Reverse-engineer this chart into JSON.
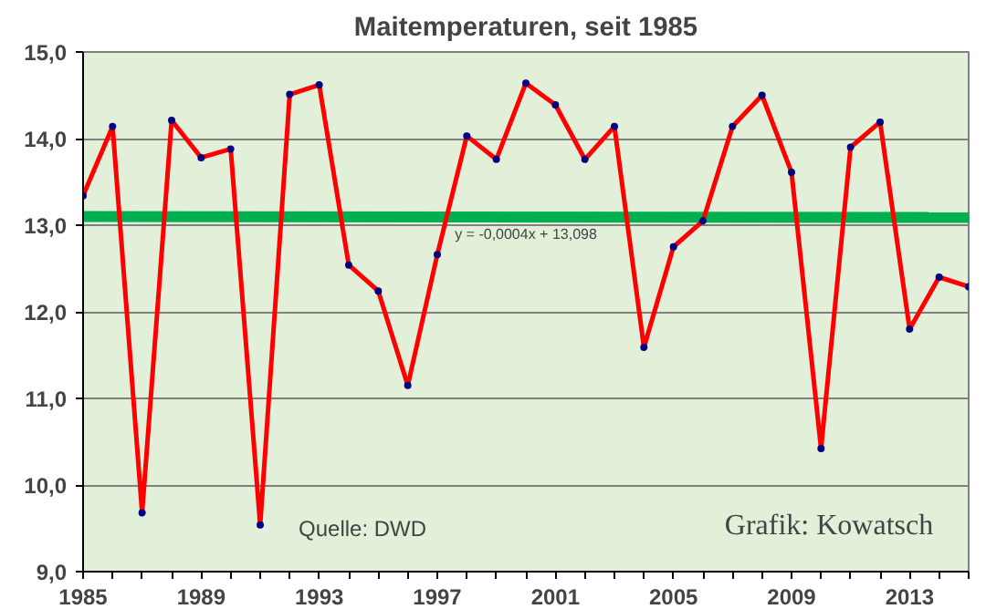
{
  "chart_data": {
    "type": "line",
    "title": "Maitemperaturen, seit 1985",
    "x": [
      1985,
      1986,
      1987,
      1988,
      1989,
      1990,
      1991,
      1992,
      1993,
      1994,
      1995,
      1996,
      1997,
      1998,
      1999,
      2000,
      2001,
      2002,
      2003,
      2004,
      2005,
      2006,
      2007,
      2008,
      2009,
      2010,
      2011,
      2012,
      2013,
      2014,
      2015
    ],
    "series": [
      {
        "color": "#ff0000",
        "values": [
          13.34,
          14.14,
          9.68,
          14.21,
          13.78,
          13.88,
          9.54,
          14.51,
          14.62,
          12.54,
          12.24,
          11.15,
          12.66,
          14.03,
          13.76,
          14.64,
          14.39,
          13.76,
          14.14,
          11.59,
          12.75,
          13.05,
          14.14,
          14.5,
          13.61,
          10.42,
          13.9,
          14.19,
          11.8,
          12.4,
          12.29
        ]
      },
      {
        "type": "line",
        "color": "#00b050",
        "x": [
          1985,
          2015
        ],
        "values": [
          13.1,
          13.09
        ],
        "marker": "none"
      }
    ],
    "marker": "circle",
    "line_style": "solid",
    "grid": "y",
    "xlim": [
      1985,
      2015
    ],
    "ylim": [
      9,
      15
    ],
    "xticks": [
      1985,
      {
        "value": 1986,
        "label": null
      },
      {
        "value": 1987,
        "label": null
      },
      {
        "value": 1988,
        "label": null
      },
      1989,
      {
        "value": 1990,
        "label": null
      },
      {
        "value": 1991,
        "label": null
      },
      {
        "value": 1992,
        "label": null
      },
      1993,
      {
        "value": 1994,
        "label": null
      },
      {
        "value": 1995,
        "label": null
      },
      {
        "value": 1996,
        "label": null
      },
      1997,
      {
        "value": 1998,
        "label": null
      },
      {
        "value": 1999,
        "label": null
      },
      {
        "value": 2000,
        "label": null
      },
      2001,
      {
        "value": 2002,
        "label": null
      },
      {
        "value": 2003,
        "label": null
      },
      {
        "value": 2004,
        "label": null
      },
      2005,
      {
        "value": 2006,
        "label": null
      },
      {
        "value": 2007,
        "label": null
      },
      {
        "value": 2008,
        "label": null
      },
      2009,
      {
        "value": 2010,
        "label": null
      },
      {
        "value": 2011,
        "label": null
      },
      {
        "value": 2012,
        "label": null
      },
      2013,
      {
        "value": 2014,
        "label": null
      },
      {
        "value": 2015,
        "label": null
      }
    ],
    "yticks": [
      {
        "value": 9,
        "label": "9,0"
      },
      {
        "value": 10,
        "label": "10,0"
      },
      {
        "value": 11,
        "label": "11,0"
      },
      {
        "value": 12,
        "label": "12,0"
      },
      {
        "value": 13,
        "label": "13,0"
      },
      {
        "value": 14,
        "label": "14,0"
      },
      {
        "value": 15,
        "label": "15,0"
      }
    ],
    "annotations": [
      "y = -0,0004x + 13,098",
      "Quelle: DWD",
      "Grafik: Kowatsch"
    ]
  }
}
